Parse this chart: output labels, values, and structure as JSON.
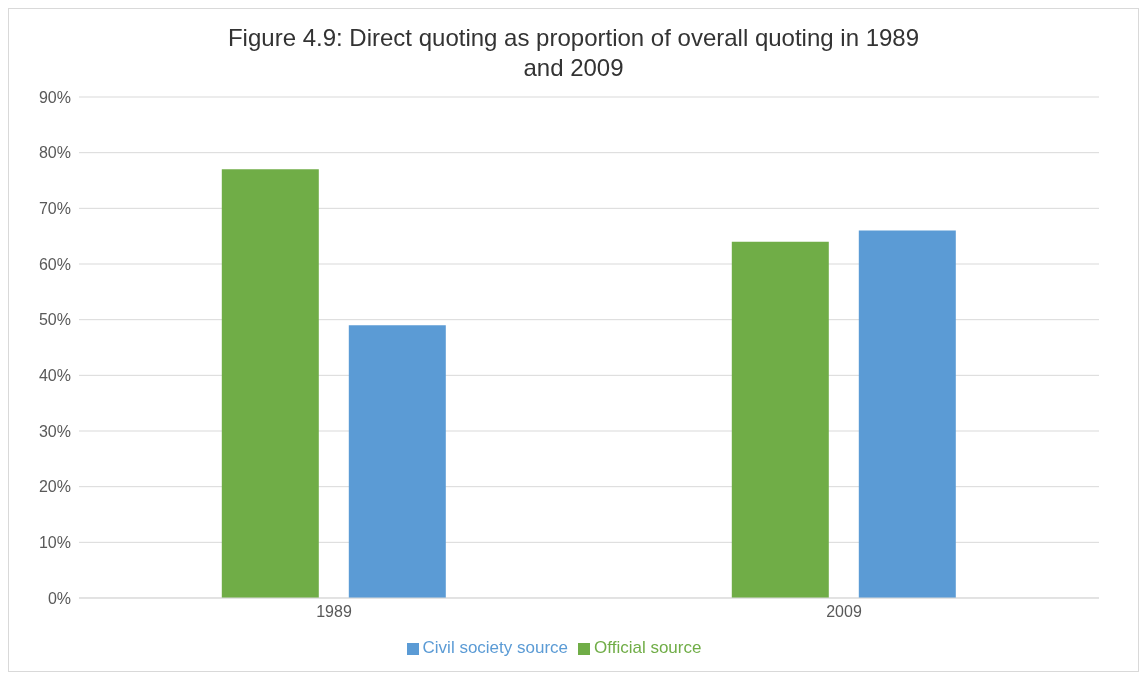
{
  "chart_data": {
    "type": "bar",
    "title": "Figure 4.9: Direct quoting as proportion of overall quoting in 1989 and 2009",
    "categories": [
      "1989",
      "2009"
    ],
    "series": [
      {
        "name": "Official source",
        "color": "#70ad47",
        "values": [
          77,
          64
        ]
      },
      {
        "name": "Civil society source",
        "color": "#5b9bd5",
        "values": [
          49,
          66
        ]
      }
    ],
    "ylim": [
      0,
      90
    ],
    "yticks": [
      {
        "value": 0,
        "label": "0%"
      },
      {
        "value": 10,
        "label": "10%"
      },
      {
        "value": 20,
        "label": "20%"
      },
      {
        "value": 30,
        "label": "30%"
      },
      {
        "value": 40,
        "label": "40%"
      },
      {
        "value": 50,
        "label": "50%"
      },
      {
        "value": 60,
        "label": "60%"
      },
      {
        "value": 70,
        "label": "70%"
      },
      {
        "value": 80,
        "label": "80%"
      },
      {
        "value": 90,
        "label": "90%"
      }
    ],
    "grid": "y",
    "legend": "bottom"
  }
}
